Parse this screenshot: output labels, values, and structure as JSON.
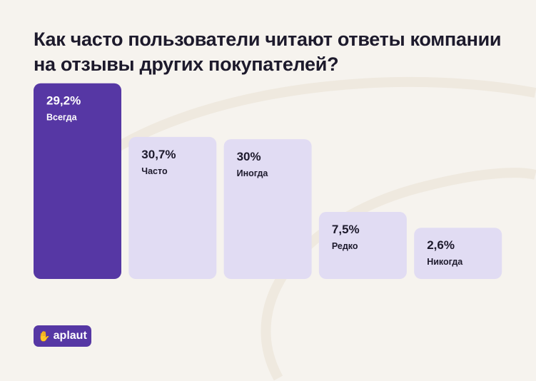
{
  "chart_data": {
    "type": "bar",
    "title": "Как часто пользователи читают ответы компании на отзывы других покупателей?",
    "categories": [
      "Всегда",
      "Часто",
      "Иногда",
      "Редко",
      "Никогда"
    ],
    "values": [
      29.2,
      30.7,
      30,
      7.5,
      2.6
    ],
    "value_labels": [
      "29,2%",
      "30,7%",
      "30%",
      "7,5%",
      "2,6%"
    ],
    "highlighted": "Всегда",
    "unit": "%",
    "grid": false,
    "colors": {
      "highlight": "#5637a4",
      "bar": "#e1dcf3",
      "text": "#1d1a2c",
      "highlight_text": "#ffffff"
    }
  },
  "logo": {
    "text": "aplaut",
    "icon": "clapping-hand-icon"
  }
}
